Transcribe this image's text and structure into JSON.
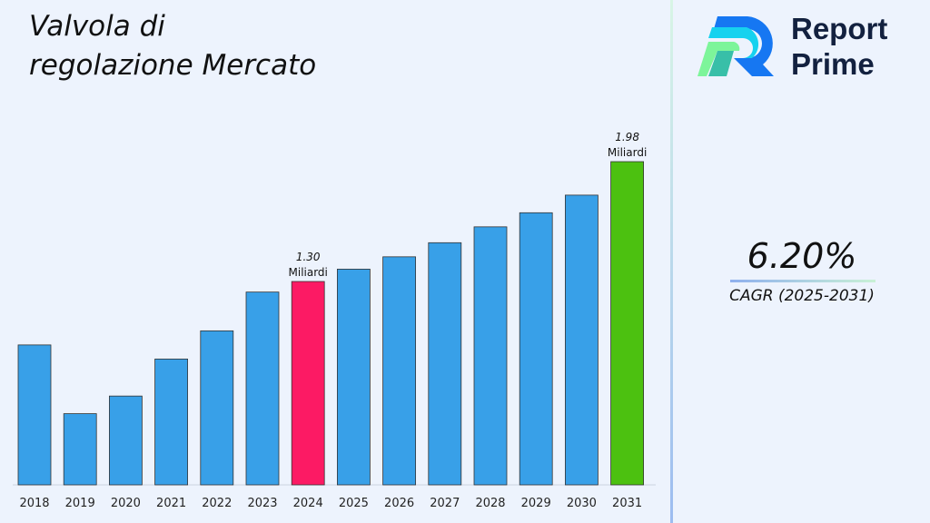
{
  "chart_data": {
    "type": "bar",
    "title": "Valvola di regolazione Mercato",
    "categories": [
      "2018",
      "2019",
      "2020",
      "2021",
      "2022",
      "2023",
      "2024",
      "2025",
      "2026",
      "2027",
      "2028",
      "2029",
      "2030",
      "2031"
    ],
    "values": [
      0.94,
      0.55,
      0.65,
      0.86,
      1.02,
      1.24,
      1.3,
      1.37,
      1.44,
      1.52,
      1.61,
      1.69,
      1.79,
      1.98
    ],
    "ylim": [
      0.15,
      2.1
    ],
    "grid": false,
    "colors": {
      "default": "#38a0e8",
      "highlight_2024": "#fc1a64",
      "highlight_2031": "#4cc110"
    },
    "highlight_colors": [
      "#38a0e8",
      "#38a0e8",
      "#38a0e8",
      "#38a0e8",
      "#38a0e8",
      "#38a0e8",
      "#fc1a64",
      "#38a0e8",
      "#38a0e8",
      "#38a0e8",
      "#38a0e8",
      "#38a0e8",
      "#38a0e8",
      "#4cc110"
    ],
    "annotations": [
      {
        "category": "2024",
        "value": "1.30",
        "unit": "Miliardi"
      },
      {
        "category": "2031",
        "value": "1.98",
        "unit": "Miliardi"
      }
    ]
  },
  "header": {
    "title_line1": "Valvola di",
    "title_line2": "regolazione Mercato"
  },
  "logo": {
    "line1": "Report",
    "line2": "Prime"
  },
  "cagr": {
    "value": "6.20%",
    "label": "CAGR (2025-2031)"
  }
}
